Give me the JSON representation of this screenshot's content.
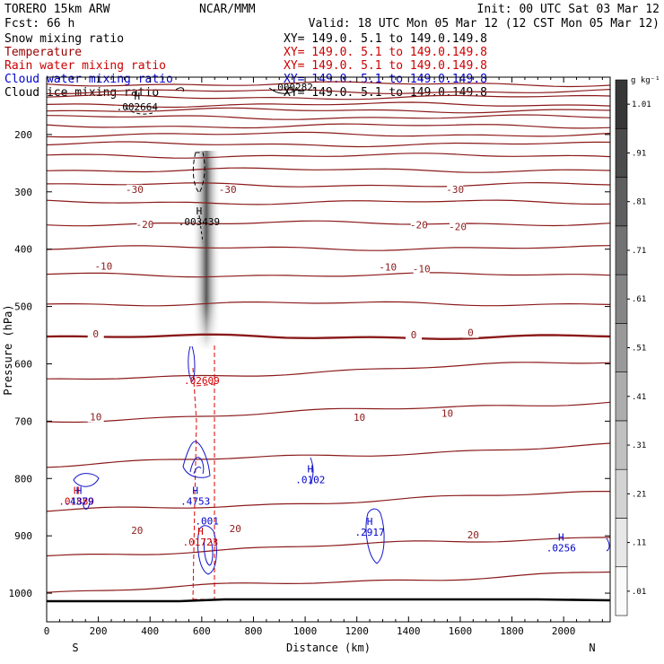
{
  "chart_data": {
    "type": "contour-cross-section",
    "header": {
      "model": "TORERO  15km ARW",
      "center": "NCAR/MMM",
      "init": "Init: 00 UTC Sat 03 Mar 12",
      "fcst": "Fcst:    66 h",
      "valid": "Valid: 18 UTC Mon 05 Mar 12 (12 CST Mon 05 Mar 12)"
    },
    "fields": [
      {
        "name": "Snow mixing ratio",
        "xy": "XY= 149.0.   5.1 to 149.0.149.8",
        "color": "#000000",
        "xy_color": "#000000"
      },
      {
        "name": "Temperature",
        "xy": "XY= 149.0.   5.1 to 149.0.149.8",
        "color": "#990000",
        "xy_color": "#cc0000"
      },
      {
        "name": "Rain water mixing ratio",
        "xy": "XY= 149.0.   5.1 to 149.0.149.8",
        "color": "#cc0000",
        "xy_color": "#cc0000"
      },
      {
        "name": "Cloud water mixing ratio",
        "xy": "XY= 149.0.   5.1 to 149.0.149.8",
        "color": "#0000cc",
        "xy_color": "#0000cc"
      },
      {
        "name": "Cloud ice mixing ratio",
        "xy": "XY= 149.0.   5.1 to 149.0.149.8",
        "color": "#000000",
        "xy_color": "#000000"
      }
    ],
    "xlabel": "Distance (km)",
    "ylabel": "Pressure (hPa)",
    "xlim": [
      0,
      2180
    ],
    "ylim": [
      1050,
      100
    ],
    "xticks": [
      0,
      200,
      400,
      600,
      800,
      1000,
      1200,
      1400,
      1600,
      1800,
      2000
    ],
    "yticks": [
      200,
      300,
      400,
      500,
      600,
      700,
      800,
      900,
      1000
    ],
    "x_end_labels": {
      "left": "S",
      "right": "N"
    },
    "colorbar": {
      "unit": "g kg⁻¹",
      "levels": [
        0.01,
        0.11,
        0.21,
        0.31,
        0.41,
        0.51,
        0.61,
        0.71,
        0.81,
        0.91,
        1.01
      ],
      "labels": [
        ".01",
        ".11",
        ".21",
        ".31",
        ".41",
        ".51",
        ".61",
        ".71",
        ".81",
        ".91",
        "1.01"
      ]
    },
    "temperature_contours_C": [
      -30,
      -20,
      -10,
      0,
      10,
      20
    ],
    "temperature_labels": [
      {
        "value": "-30",
        "x": 340,
        "p": 300
      },
      {
        "value": "-30",
        "x": 700,
        "p": 300
      },
      {
        "value": "-30",
        "x": 1580,
        "p": 300
      },
      {
        "value": "-20",
        "x": 380,
        "p": 361
      },
      {
        "value": "-20",
        "x": 1440,
        "p": 362
      },
      {
        "value": "-20",
        "x": 1590,
        "p": 365
      },
      {
        "value": "-10",
        "x": 220,
        "p": 434
      },
      {
        "value": "-10",
        "x": 1320,
        "p": 436
      },
      {
        "value": "-10",
        "x": 1450,
        "p": 439
      },
      {
        "value": "0",
        "x": 190,
        "p": 552
      },
      {
        "value": "0",
        "x": 1420,
        "p": 554
      },
      {
        "value": "0",
        "x": 1640,
        "p": 550
      },
      {
        "value": "10",
        "x": 190,
        "p": 697
      },
      {
        "value": "10",
        "x": 1210,
        "p": 698
      },
      {
        "value": "10",
        "x": 1550,
        "p": 691
      },
      {
        "value": "20",
        "x": 350,
        "p": 895
      },
      {
        "value": "20",
        "x": 730,
        "p": 892
      },
      {
        "value": "20",
        "x": 1650,
        "p": 903
      }
    ],
    "extrema_markers": [
      {
        "mark": "H",
        "value": ".002664",
        "x": 350,
        "p": 155,
        "color": "#000000"
      },
      {
        "mark": "H",
        "value": ".003439",
        "x": 590,
        "p": 355,
        "color": "#000000"
      },
      {
        "mark": "",
        "value": ".000282",
        "x": 950,
        "p": 120,
        "color": "#000000"
      },
      {
        "mark": "",
        "value": ".02609",
        "x": 600,
        "p": 632,
        "color": "#cc0000"
      },
      {
        "mark": "H",
        "value": ".01889",
        "x": 115,
        "p": 843,
        "color": "#cc0000"
      },
      {
        "mark": "H",
        "value": ".4379",
        "x": 125,
        "p": 843,
        "color": "#0000cc"
      },
      {
        "mark": "H",
        "value": ".4753",
        "x": 575,
        "p": 843,
        "color": "#0000cc"
      },
      {
        "mark": "",
        "value": ".001",
        "x": 620,
        "p": 877,
        "color": "#0000cc"
      },
      {
        "mark": "H",
        "value": ".01723",
        "x": 595,
        "p": 914,
        "color": "#cc0000"
      },
      {
        "mark": "H",
        "value": ".0102",
        "x": 1020,
        "p": 805,
        "color": "#0000cc"
      },
      {
        "mark": "H",
        "value": ".2917",
        "x": 1250,
        "p": 897,
        "color": "#0000cc"
      },
      {
        "mark": "H",
        "value": ".0256",
        "x": 1990,
        "p": 924,
        "color": "#0000cc"
      }
    ]
  }
}
